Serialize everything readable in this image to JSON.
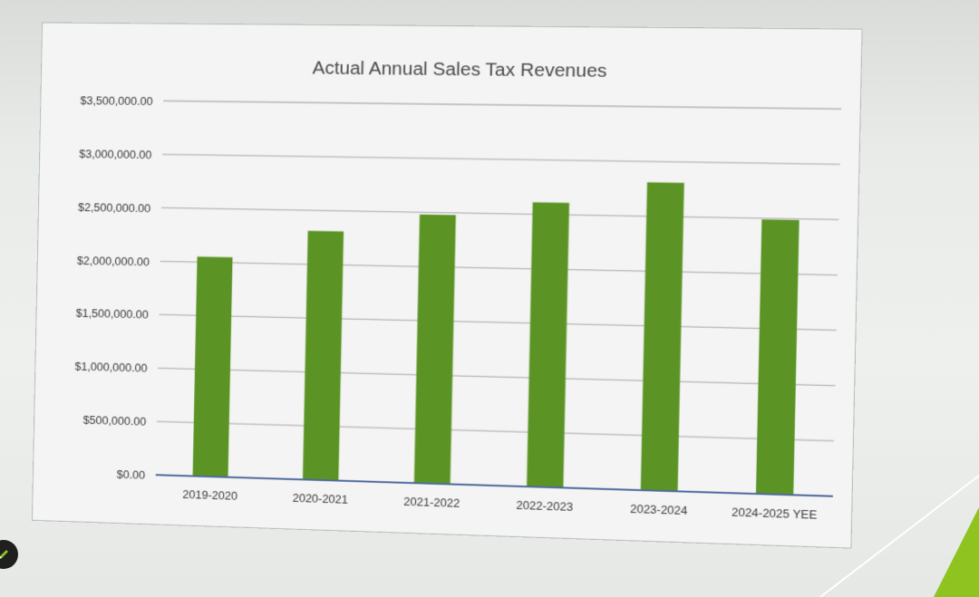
{
  "chart_data": {
    "type": "bar",
    "title": "Actual Annual Sales Tax Revenues",
    "categories": [
      "2019-2020",
      "2020-2021",
      "2021-2022",
      "2022-2023",
      "2023-2024",
      "2024-2025 YEE"
    ],
    "values": [
      2050000,
      2310000,
      2480000,
      2610000,
      2810000,
      2490000
    ],
    "ylim": [
      0,
      3500000
    ],
    "yticks": [
      0,
      500000,
      1000000,
      1500000,
      2000000,
      2500000,
      3000000,
      3500000
    ],
    "ytick_labels": [
      "$0.00",
      "$500,000.00",
      "$1,000,000.00",
      "$1,500,000.00",
      "$2,000,000.00",
      "$2,500,000.00",
      "$3,000,000.00",
      "$3,500,000.00"
    ],
    "xlabel": "",
    "ylabel": "",
    "grid": true,
    "legend": "none",
    "bar_color": "#5b9424"
  },
  "colors": {
    "bar": "#5b9424",
    "gridline": "#b5b5b5",
    "baseline": "#4f6a9e",
    "accent_green": "#8fc31f"
  },
  "icons": {
    "pen_button": "pen-icon"
  }
}
